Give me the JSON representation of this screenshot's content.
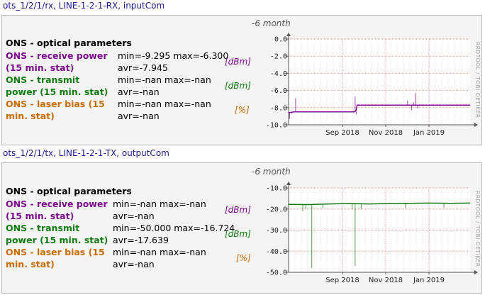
{
  "blocks": [
    {
      "header": "ots_1/2/1/rx, LINE-1-2-1-RX, inputCom",
      "period": "-6 month",
      "section": "ONS - optical parameters",
      "rows": [
        {
          "label": "ONS - receive power (15 min. stat)",
          "stat1": "min=-9.295 max=-6.300",
          "stat2": "avr=-7.945",
          "unit": "[dBm]"
        },
        {
          "label": "ONS - transmit power (15 min. stat)",
          "stat1": "min=-nan max=-nan",
          "stat2": "avr=-nan",
          "unit": "[dBm]"
        },
        {
          "label": "ONS - laser bias (15 min. stat)",
          "stat1": "min=-nan max=-nan",
          "stat2": "avr=-nan",
          "unit": "[%]"
        }
      ],
      "side_text": "RRDTOOL / TOBI OETIKER"
    },
    {
      "header": "ots_1/2/1/tx, LINE-1-2-1-TX, outputCom",
      "period": "-6 month",
      "section": "ONS - optical parameters",
      "rows": [
        {
          "label": "ONS - receive power (15 min. stat)",
          "stat1": "min=-nan max=-nan",
          "stat2": "avr=-nan",
          "unit": "[dBm]"
        },
        {
          "label": "ONS - transmit power (15 min. stat)",
          "stat1": "min=-50.000 max=-16.724",
          "stat2": "avr=-17.639",
          "unit": "[dBm]"
        },
        {
          "label": "ONS - laser bias (15 min. stat)",
          "stat1": "min=-nan max=-nan",
          "stat2": "avr=-nan",
          "unit": "[%]"
        }
      ],
      "side_text": "RRDTOOL / TOBI OETIKER"
    }
  ],
  "colors": {
    "receive": "#7a0a8a",
    "transmit": "#117a11",
    "bias": "#c86d00",
    "grid": "#e0a0a0",
    "axis": "#555555"
  },
  "chart_data": [
    {
      "type": "line",
      "x_ticks": [
        "Sep 2018",
        "Nov 2018",
        "Jan 2019"
      ],
      "y_ticks": [
        "0.0",
        "-2.0",
        "-4.0",
        "-6.0",
        "-8.0",
        "-10.0"
      ],
      "ylim": [
        -10,
        0
      ],
      "xlim": [
        0,
        180
      ],
      "x_tick_pos": [
        76,
        137,
        198
      ],
      "grid": true,
      "series": [
        {
          "color": "receive",
          "points": [
            [
              0,
              -8.6
            ],
            [
              5,
              -8.5
            ],
            [
              10,
              -8.5
            ],
            [
              20,
              -8.5
            ],
            [
              40,
              -8.5
            ],
            [
              60,
              -8.5
            ],
            [
              65,
              -8.5
            ],
            [
              67,
              -8.3
            ],
            [
              68,
              -7.7
            ],
            [
              80,
              -7.7
            ],
            [
              110,
              -7.7
            ],
            [
              140,
              -7.7
            ],
            [
              170,
              -7.7
            ],
            [
              180,
              -7.7
            ]
          ],
          "spikes": [
            [
              1,
              -9.3
            ],
            [
              3,
              -8.7
            ],
            [
              7,
              -6.9
            ],
            [
              66,
              -6.7
            ],
            [
              67,
              -8.8
            ],
            [
              118,
              -7.2
            ],
            [
              122,
              -8.3
            ],
            [
              124,
              -7.4
            ],
            [
              126,
              -6.3
            ],
            [
              128,
              -8.1
            ]
          ]
        }
      ]
    },
    {
      "type": "line",
      "x_ticks": [
        "Sep 2018",
        "Nov 2018",
        "Jan 2019"
      ],
      "y_ticks": [
        "-10.0",
        "-20.0",
        "-30.0",
        "-40.0",
        "-50.0"
      ],
      "ylim": [
        -50,
        -10
      ],
      "xlim": [
        0,
        180
      ],
      "x_tick_pos": [
        76,
        137,
        198
      ],
      "grid": true,
      "series": [
        {
          "color": "transmit",
          "points": [
            [
              0,
              -17.8
            ],
            [
              20,
              -17.9
            ],
            [
              40,
              -17.6
            ],
            [
              60,
              -17.4
            ],
            [
              80,
              -17.6
            ],
            [
              100,
              -17.4
            ],
            [
              120,
              -17.3
            ],
            [
              140,
              -17.2
            ],
            [
              160,
              -17.3
            ],
            [
              180,
              -17.2
            ]
          ],
          "spikes": [
            [
              14,
              -21
            ],
            [
              17,
              -20
            ],
            [
              23,
              -48
            ],
            [
              34,
              -19.5
            ],
            [
              63,
              -20
            ],
            [
              66,
              -47
            ],
            [
              72,
              -20
            ],
            [
              116,
              -19.5
            ],
            [
              154,
              -19.5
            ]
          ]
        }
      ]
    }
  ]
}
